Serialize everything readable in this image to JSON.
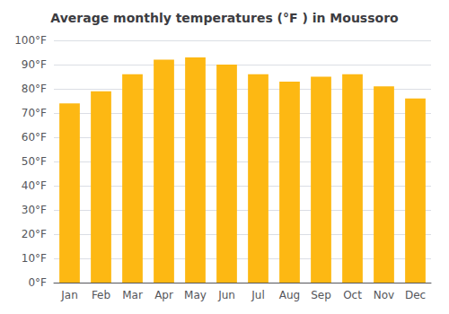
{
  "chart_data": {
    "type": "bar",
    "title": "Average monthly temperatures (°F ) in Moussoro",
    "categories": [
      "Jan",
      "Feb",
      "Mar",
      "Apr",
      "May",
      "Jun",
      "Jul",
      "Aug",
      "Sep",
      "Oct",
      "Nov",
      "Dec"
    ],
    "values": [
      74,
      79,
      86,
      92,
      93,
      90,
      86,
      83,
      85,
      86,
      81,
      76
    ],
    "color": "#FDB813",
    "ylim": [
      0,
      100
    ],
    "yticks": [
      {
        "value": 0,
        "label": "0°F"
      },
      {
        "value": 10,
        "label": "10°F"
      },
      {
        "value": 20,
        "label": "20°F"
      },
      {
        "value": 30,
        "label": "30°F"
      },
      {
        "value": 40,
        "label": "40°F"
      },
      {
        "value": 50,
        "label": "50°F"
      },
      {
        "value": 60,
        "label": "60°F"
      },
      {
        "value": 70,
        "label": "70°F"
      },
      {
        "value": 80,
        "label": "80°F"
      },
      {
        "value": 90,
        "label": "90°F"
      },
      {
        "value": 100,
        "label": "100°F"
      }
    ],
    "grid": true
  }
}
